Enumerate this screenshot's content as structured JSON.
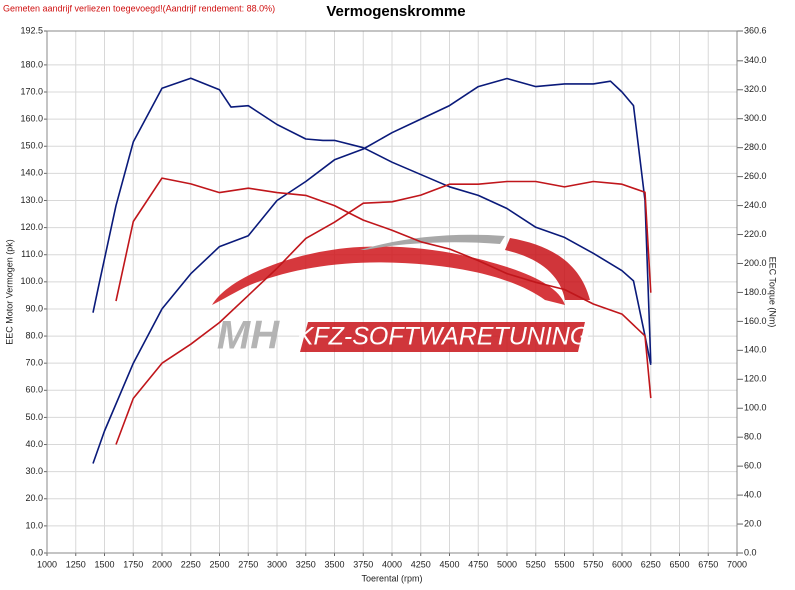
{
  "chart_data": {
    "type": "line",
    "note": "Gemeten aandrijf verliezen toegevoegd!(Aandrijf rendement: 88.0%)",
    "title": "Vermogenskromme",
    "xlabel": "Toerental (rpm)",
    "ylabel": "EEC Motor Vermogen (pk)",
    "y2label": "EEC Torque (Nm)",
    "logo": {
      "initials": "MH",
      "text": "KFZ-SOFTWARETUNING"
    },
    "grid": true,
    "xlim": [
      1000,
      7000
    ],
    "xticks": [
      1000,
      1250,
      1500,
      1750,
      2000,
      2250,
      2500,
      2750,
      3000,
      3250,
      3500,
      3750,
      4000,
      4250,
      4500,
      4750,
      5000,
      5250,
      5500,
      5750,
      6000,
      6250,
      6500,
      6750,
      7000
    ],
    "ylim": [
      0,
      192.5
    ],
    "yticks": [
      {
        "value": 0,
        "label": "0.0"
      },
      {
        "value": 10,
        "label": "10.0"
      },
      {
        "value": 20,
        "label": "20.0"
      },
      {
        "value": 30,
        "label": "30.0"
      },
      {
        "value": 40,
        "label": "40.0"
      },
      {
        "value": 50,
        "label": "50.0"
      },
      {
        "value": 60,
        "label": "60.0"
      },
      {
        "value": 70,
        "label": "70.0"
      },
      {
        "value": 80,
        "label": "80.0"
      },
      {
        "value": 90,
        "label": "90.0"
      },
      {
        "value": 100,
        "label": "100.0"
      },
      {
        "value": 110,
        "label": "110.0"
      },
      {
        "value": 120,
        "label": "120.0"
      },
      {
        "value": 130,
        "label": "130.0"
      },
      {
        "value": 140,
        "label": "140.0"
      },
      {
        "value": 150,
        "label": "150.0"
      },
      {
        "value": 160,
        "label": "160.0"
      },
      {
        "value": 170,
        "label": "170.0"
      },
      {
        "value": 180,
        "label": "180.0"
      },
      192.5
    ],
    "y2lim": [
      0,
      360.6
    ],
    "y2ticks": [
      {
        "value": 0,
        "label": "0.0"
      },
      {
        "value": 20,
        "label": "20.0"
      },
      {
        "value": 40,
        "label": "40.0"
      },
      {
        "value": 60,
        "label": "60.0"
      },
      {
        "value": 80,
        "label": "80.0"
      },
      {
        "value": 100,
        "label": "100.0"
      },
      {
        "value": 120,
        "label": "120.0"
      },
      {
        "value": 140,
        "label": "140.0"
      },
      {
        "value": 160,
        "label": "160.0"
      },
      {
        "value": 180,
        "label": "180.0"
      },
      {
        "value": 200,
        "label": "200.0"
      },
      {
        "value": 220,
        "label": "220.0"
      },
      {
        "value": 240,
        "label": "240.0"
      },
      {
        "value": 260,
        "label": "260.0"
      },
      {
        "value": 280,
        "label": "280.0"
      },
      {
        "value": 300,
        "label": "300.0"
      },
      {
        "value": 320,
        "label": "320.0"
      },
      {
        "value": 340,
        "label": "340.0"
      },
      360.6
    ],
    "series": [
      {
        "color": "#0a1a7a",
        "axis": "y",
        "x": [
          1400,
          1500,
          1750,
          2000,
          2250,
          2500,
          2750,
          3000,
          3250,
          3500,
          3750,
          4000,
          4250,
          4500,
          4750,
          5000,
          5250,
          5500,
          5750,
          5900,
          6000,
          6100,
          6200,
          6250
        ],
        "values": [
          33,
          45,
          70,
          90,
          103,
          113,
          117,
          130,
          137,
          145,
          149,
          155,
          160,
          165,
          172,
          175,
          172,
          173,
          173,
          174,
          170,
          165,
          130,
          70
        ]
      },
      {
        "color": "#0a1a7a",
        "axis": "y2",
        "x": [
          1400,
          1450,
          1600,
          1750,
          2000,
          2250,
          2500,
          2600,
          2750,
          3000,
          3250,
          3400,
          3500,
          3750,
          4000,
          4500,
          4750,
          5000,
          5250,
          5500,
          5750,
          6000,
          6100,
          6200,
          6250
        ],
        "values": [
          166,
          185,
          240,
          284,
          321,
          328,
          320,
          308,
          309,
          296,
          286,
          285,
          285,
          280,
          270,
          253,
          247,
          238,
          225,
          218,
          207,
          195,
          188,
          150,
          130
        ]
      },
      {
        "color": "#c0161b",
        "axis": "y",
        "x": [
          1600,
          1750,
          2000,
          2250,
          2500,
          2750,
          3000,
          3250,
          3500,
          3750,
          4000,
          4250,
          4500,
          4750,
          5000,
          5250,
          5500,
          5750,
          6000,
          6200,
          6250
        ],
        "values": [
          40,
          57,
          70,
          77,
          85,
          95,
          105,
          116,
          122,
          129,
          129.5,
          132,
          136,
          136,
          137,
          137,
          135,
          137,
          136,
          133,
          96
        ]
      },
      {
        "color": "#c0161b",
        "axis": "y2",
        "x": [
          1600,
          1750,
          2000,
          2250,
          2500,
          2750,
          3000,
          3250,
          3500,
          3750,
          4000,
          4250,
          4500,
          4750,
          5000,
          5250,
          5500,
          5750,
          6000,
          6200,
          6250
        ],
        "values": [
          174,
          229,
          259,
          255,
          249,
          252,
          249,
          247,
          240,
          230,
          223,
          215,
          210,
          202,
          193,
          187,
          182,
          172,
          165,
          150,
          107
        ]
      }
    ]
  }
}
